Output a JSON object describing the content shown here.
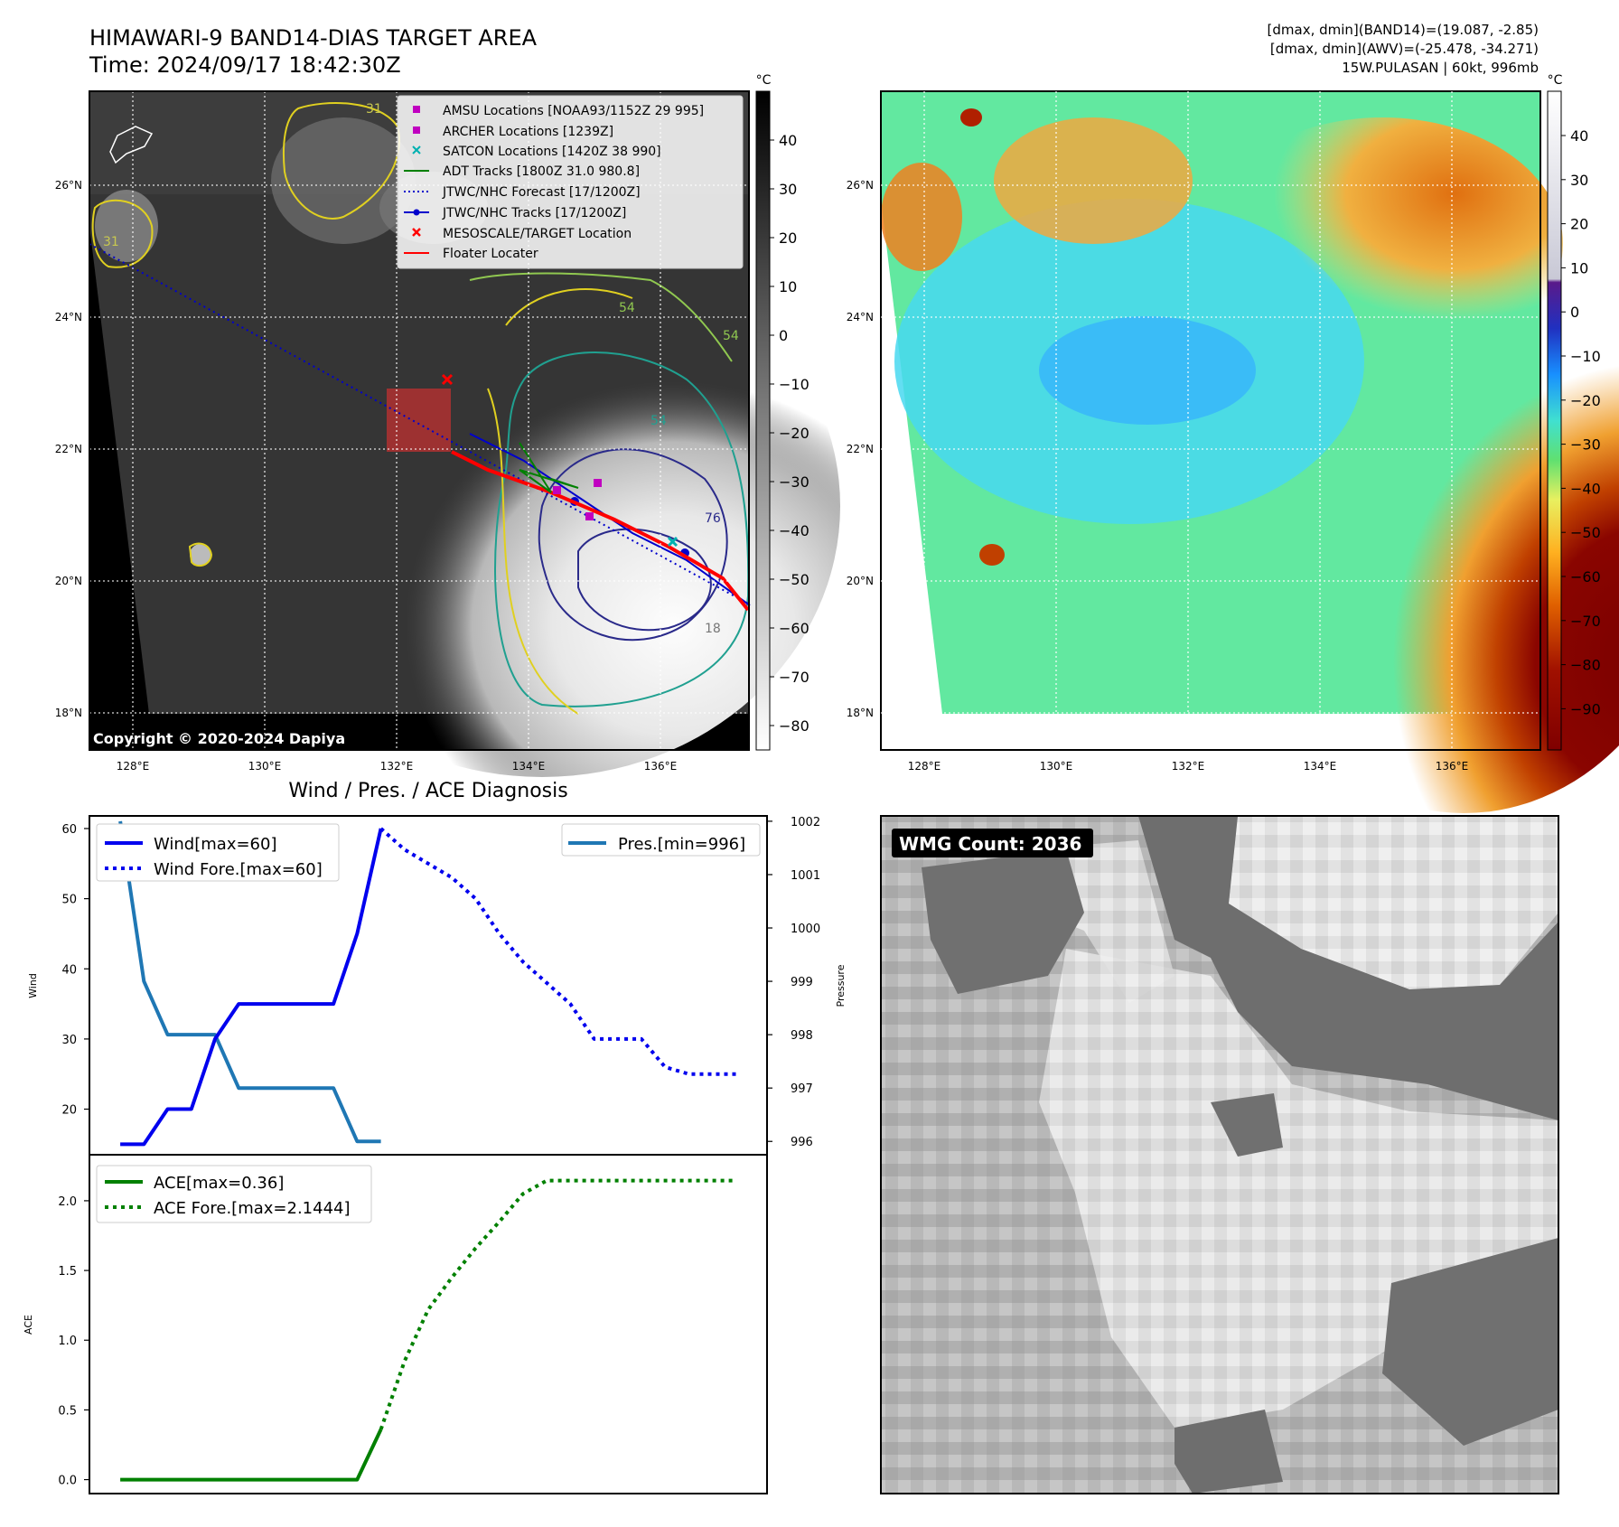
{
  "header": {
    "title": "HIMAWARI-9 BAND14-DIAS TARGET AREA",
    "time": "Time: 2024/09/17 18:42:30Z",
    "info": [
      "[dmax, dmin](BAND14)=(19.087, -2.85)",
      "[dmax, dmin](AWV)=(-25.478, -34.271)",
      "15W.PULASAN | 60kt, 996mb"
    ]
  },
  "colors": {
    "wind": "#0000ee",
    "pressure": "#1f77b4",
    "ace": "#008000",
    "forecast_track": "#0000cc",
    "floater": "#ff0000",
    "amsu": "#c000c0",
    "satcon": "#00b0b0"
  },
  "map_left": {
    "copyright": "Copyright © 2020-2024 Dapiya",
    "colorbar": {
      "unit": "°C",
      "ticks": [
        "40",
        "30",
        "20",
        "10",
        "0",
        "−10",
        "−20",
        "−30",
        "−40",
        "−50",
        "−60",
        "−70",
        "−80"
      ]
    },
    "legend": [
      {
        "label": "AMSU Locations [NOAA93/1152Z 29 995]",
        "marker": "square",
        "color": "#c000c0"
      },
      {
        "label": "ARCHER Locations [1239Z]",
        "marker": "square",
        "color": "#c000c0"
      },
      {
        "label": "SATCON Locations [1420Z 38 990]",
        "marker": "x",
        "color": "#00b0b0"
      },
      {
        "label": "ADT Tracks [1800Z 31.0 980.8]",
        "marker": "line",
        "color": "#008000"
      },
      {
        "label": "JTWC/NHC Forecast [17/1200Z]",
        "marker": "dotted",
        "color": "#0000cc"
      },
      {
        "label": "JTWC/NHC Tracks [17/1200Z]",
        "marker": "line-dot",
        "color": "#0000cc"
      },
      {
        "label": "MESOSCALE/TARGET Location",
        "marker": "x",
        "color": "#ff0000"
      },
      {
        "label": "Floater Locater",
        "marker": "line",
        "color": "#ff0000"
      }
    ],
    "contour_labels": [
      "31",
      "31",
      "54",
      "54",
      "54",
      "76",
      "18"
    ]
  },
  "map_axes": {
    "lon_ticks": [
      "128°E",
      "130°E",
      "132°E",
      "134°E",
      "136°E"
    ],
    "lat_ticks": [
      "26°N",
      "24°N",
      "22°N",
      "20°N",
      "18°N"
    ]
  },
  "map_right": {
    "colorbar": {
      "unit": "°C",
      "ticks": [
        "40",
        "30",
        "20",
        "10",
        "0",
        "−10",
        "−20",
        "−30",
        "−40",
        "−50",
        "−60",
        "−70",
        "−80",
        "−90"
      ]
    }
  },
  "wmg": {
    "label": "WMG Count: 2036"
  },
  "chart_data": [
    {
      "type": "line",
      "title": "Wind / Pres. / ACE Diagnosis",
      "ylabel": "Wind",
      "y2label": "Pressure",
      "ylim": [
        13.5,
        61.8
      ],
      "y2lim": [
        995.75,
        1002.1
      ],
      "xlim": [
        -1.3,
        27.3
      ],
      "y_ticks": [
        "60",
        "50",
        "40",
        "30",
        "20"
      ],
      "y2_ticks": [
        "1002",
        "1001",
        "1000",
        "999",
        "998",
        "997",
        "996"
      ],
      "series": [
        {
          "name": "Wind[max=60]",
          "axis": "left",
          "style": "solid",
          "x": [
            0,
            1,
            2,
            3,
            4,
            5,
            6,
            7,
            8,
            9,
            10,
            11
          ],
          "y": [
            15,
            15,
            20,
            20,
            30,
            35,
            35,
            35,
            35,
            35,
            45,
            60
          ]
        },
        {
          "name": "Wind Fore.[max=60]",
          "axis": "left",
          "style": "dotted",
          "x": [
            11,
            12,
            13,
            14,
            15,
            16,
            17,
            18,
            19,
            20,
            21,
            22,
            23,
            24,
            25,
            26
          ],
          "y": [
            60,
            57,
            55,
            53,
            50,
            45,
            41,
            38,
            35,
            30,
            30,
            30,
            26,
            25,
            25,
            25
          ]
        },
        {
          "name": "Pres.[min=996]",
          "axis": "right",
          "style": "solid",
          "x": [
            0,
            1,
            2,
            3,
            4,
            5,
            6,
            7,
            8,
            9,
            10,
            11
          ],
          "y": [
            1002,
            999,
            998,
            998,
            998,
            997,
            997,
            997,
            997,
            997,
            996,
            996
          ]
        }
      ],
      "legend": [
        "upper-left",
        "upper-right"
      ]
    },
    {
      "type": "line",
      "ylabel": "ACE",
      "ylim": [
        -0.1,
        2.33
      ],
      "xlim": [
        -1.3,
        27.3
      ],
      "y_ticks": [
        "2.0",
        "1.5",
        "1.0",
        "0.5",
        "0.0"
      ],
      "series": [
        {
          "name": "ACE[max=0.36]",
          "style": "solid",
          "x": [
            0,
            1,
            2,
            3,
            4,
            5,
            6,
            7,
            8,
            9,
            10,
            11
          ],
          "y": [
            0,
            0,
            0,
            0,
            0,
            0,
            0,
            0,
            0,
            0,
            0,
            0.36
          ]
        },
        {
          "name": "ACE Fore.[max=2.1444]",
          "style": "dotted",
          "x": [
            11,
            12,
            13,
            14,
            15,
            16,
            17,
            18,
            19,
            20,
            21,
            22,
            23,
            24,
            25,
            26
          ],
          "y": [
            0.36,
            0.85,
            1.22,
            1.45,
            1.66,
            1.85,
            2.05,
            2.1444,
            2.1444,
            2.1444,
            2.1444,
            2.1444,
            2.1444,
            2.1444,
            2.1444,
            2.1444
          ]
        }
      ],
      "legend": "upper-left"
    }
  ]
}
